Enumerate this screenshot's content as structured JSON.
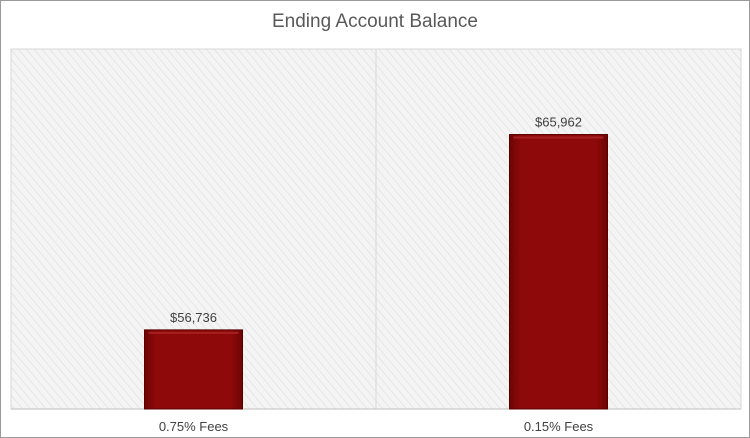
{
  "chart_data": {
    "type": "bar",
    "title": "Ending Account Balance",
    "categories": [
      "0.75% Fees",
      "0.15% Fees"
    ],
    "values": [
      56736,
      65962
    ],
    "data_labels": [
      "$56,736",
      "$65,962"
    ],
    "ylim": [
      53000,
      70000
    ],
    "grid": false,
    "legend": "none",
    "colors": {
      "bar": "#8b0808",
      "bar_edge": "#5a0000",
      "plot_bg": "#f2f2f2",
      "hatch": "#dcdcdc"
    }
  }
}
